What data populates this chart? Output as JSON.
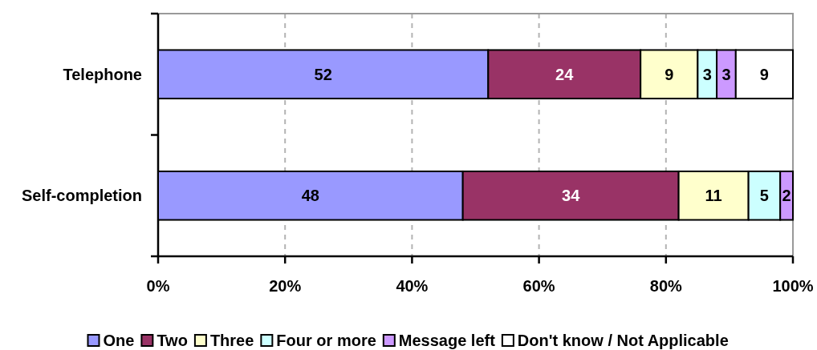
{
  "chart_data": {
    "type": "bar",
    "orientation": "horizontal",
    "stacked": true,
    "categories": [
      "Telephone",
      "Self-completion"
    ],
    "series": [
      {
        "name": "One",
        "color": "#9999ff",
        "values": [
          52,
          48
        ]
      },
      {
        "name": "Two",
        "color": "#993366",
        "values": [
          24,
          34
        ]
      },
      {
        "name": "Three",
        "color": "#ffffcc",
        "values": [
          9,
          11
        ]
      },
      {
        "name": "Four or more",
        "color": "#ccffff",
        "values": [
          3,
          5
        ]
      },
      {
        "name": "Message left",
        "color": "#cc99ff",
        "values": [
          3,
          2
        ]
      },
      {
        "name": "Don't know / Not Applicable",
        "color": "#ffffff",
        "values": [
          9,
          null
        ]
      }
    ],
    "xlim": [
      0,
      100
    ],
    "xticks": [
      {
        "value": 0,
        "label": "0%"
      },
      {
        "value": 20,
        "label": "20%"
      },
      {
        "value": 40,
        "label": "40%"
      },
      {
        "value": 60,
        "label": "60%"
      },
      {
        "value": 80,
        "label": "80%"
      },
      {
        "value": 100,
        "label": "100%"
      }
    ],
    "grid": "x",
    "data_labels": true,
    "legend": "bottom"
  }
}
